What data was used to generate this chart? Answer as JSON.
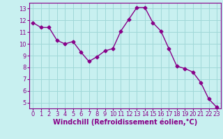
{
  "x": [
    0,
    1,
    2,
    3,
    4,
    5,
    6,
    7,
    8,
    9,
    10,
    11,
    12,
    13,
    14,
    15,
    16,
    17,
    18,
    19,
    20,
    21,
    22,
    23
  ],
  "y": [
    11.8,
    11.4,
    11.4,
    10.3,
    10.0,
    10.2,
    9.3,
    8.5,
    8.9,
    9.4,
    9.6,
    11.1,
    12.1,
    13.1,
    13.1,
    11.8,
    11.1,
    9.6,
    8.1,
    7.9,
    7.6,
    6.7,
    5.3,
    4.6
  ],
  "line_color": "#880088",
  "marker": "D",
  "marker_size": 2.5,
  "line_width": 1.0,
  "bg_color": "#c8f0f0",
  "grid_color": "#a0d8d8",
  "xlabel": "Windchill (Refroidissement éolien,°C)",
  "xlabel_color": "#880088",
  "tick_color": "#880088",
  "xlim": [
    -0.5,
    23.5
  ],
  "ylim": [
    4.5,
    13.5
  ],
  "yticks": [
    5,
    6,
    7,
    8,
    9,
    10,
    11,
    12,
    13
  ],
  "xtick_labels": [
    "0",
    "1",
    "2",
    "3",
    "4",
    "5",
    "6",
    "7",
    "8",
    "9",
    "10",
    "11",
    "12",
    "13",
    "14",
    "15",
    "16",
    "17",
    "18",
    "19",
    "20",
    "21",
    "22",
    "23"
  ],
  "font_size": 6,
  "label_font_size": 7
}
